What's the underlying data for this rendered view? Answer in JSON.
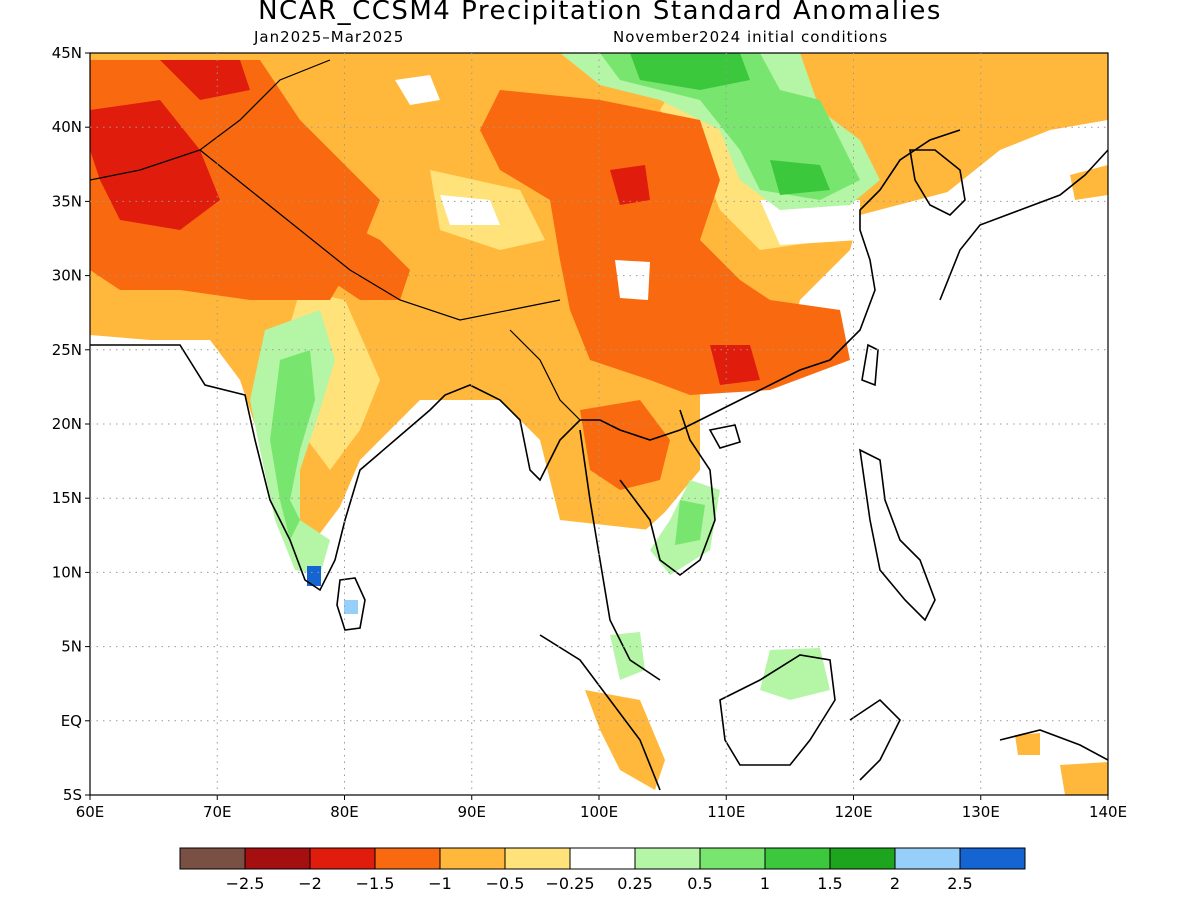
{
  "title": "NCAR_CCSM4 Precipitation Standard Anomalies",
  "period": "Jan2025–Mar2025",
  "init": "November2024 initial conditions",
  "map": {
    "lon_range": [
      60,
      140
    ],
    "lat_range": [
      -5,
      45
    ],
    "lon_ticks": [
      "60E",
      "70E",
      "80E",
      "90E",
      "100E",
      "110E",
      "120E",
      "130E",
      "140E"
    ],
    "lat_ticks": [
      "45N",
      "40N",
      "35N",
      "30N",
      "25N",
      "20N",
      "15N",
      "10N",
      "5N",
      "EQ",
      "5S"
    ],
    "grid": "dotted"
  },
  "colorbar": {
    "colors": [
      "#7b5044",
      "#a50f0f",
      "#e01c0c",
      "#f96a10",
      "#ffb83b",
      "#ffe27a",
      "#ffffff",
      "#b4f5a6",
      "#78e66e",
      "#3cc83c",
      "#1ea51e",
      "#96d0fa",
      "#1464d2"
    ],
    "labels": [
      "−2.5",
      "−2",
      "−1.5",
      "−1",
      "−0.5",
      "−0.25",
      "0.25",
      "0.5",
      "1",
      "1.5",
      "2",
      "2.5"
    ]
  }
}
